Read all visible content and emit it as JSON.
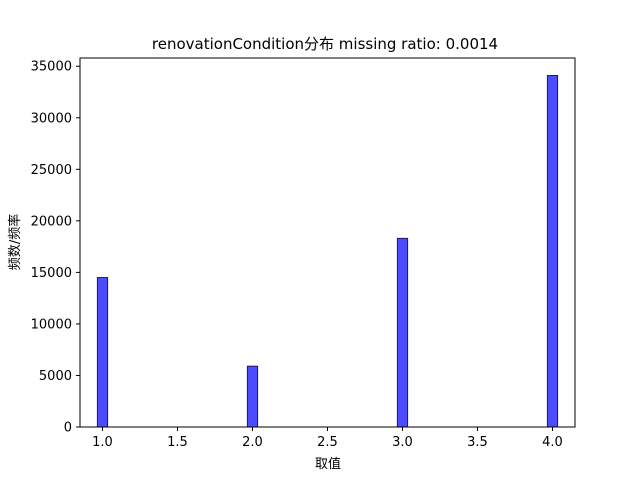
{
  "chart_data": {
    "type": "bar",
    "title": "renovationCondition分布  missing ratio: 0.0014",
    "xlabel": "取值",
    "ylabel": "频数/频率",
    "x": [
      1.0,
      2.0,
      3.0,
      4.0
    ],
    "values": [
      14500,
      5900,
      18300,
      34100
    ],
    "xlim": [
      0.85,
      4.15
    ],
    "ylim": [
      0,
      35800
    ],
    "xticks": [
      "1.0",
      "1.5",
      "2.0",
      "2.5",
      "3.0",
      "3.5",
      "4.0"
    ],
    "xtick_values": [
      1.0,
      1.5,
      2.0,
      2.5,
      3.0,
      3.5,
      4.0
    ],
    "yticks": [
      "0",
      "5000",
      "10000",
      "15000",
      "20000",
      "25000",
      "30000",
      "35000"
    ],
    "ytick_values": [
      0,
      5000,
      10000,
      15000,
      20000,
      25000,
      30000,
      35000
    ],
    "bar_color": "#4c4cff",
    "edge_color": "#1a1a66",
    "grid": false
  }
}
